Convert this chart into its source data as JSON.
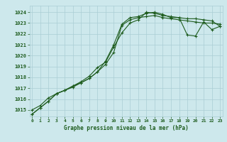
{
  "title": "Graphe pression niveau de la mer (hPa)",
  "xlabel_ticks": [
    0,
    1,
    2,
    3,
    4,
    5,
    6,
    7,
    8,
    9,
    10,
    11,
    12,
    13,
    14,
    15,
    16,
    17,
    18,
    19,
    20,
    21,
    22,
    23
  ],
  "ylim": [
    1014.4,
    1024.6
  ],
  "xlim": [
    -0.3,
    23.3
  ],
  "yticks": [
    1015,
    1016,
    1017,
    1018,
    1019,
    1020,
    1021,
    1022,
    1023,
    1024
  ],
  "bg_color": "#cde8ec",
  "grid_color": "#aacdd4",
  "line_color": "#1e5c1e",
  "line1_x": [
    0,
    1,
    2,
    3,
    4,
    5,
    6,
    7,
    8,
    9,
    10,
    11,
    12,
    13,
    14,
    15,
    16,
    17,
    18,
    19,
    20,
    21,
    22,
    23
  ],
  "line1_y": [
    1015.0,
    1015.4,
    1016.1,
    1016.5,
    1016.8,
    1017.2,
    1017.5,
    1017.9,
    1018.5,
    1019.2,
    1020.3,
    1022.8,
    1023.3,
    1023.5,
    1023.6,
    1023.7,
    1023.5,
    1023.4,
    1023.3,
    1023.2,
    1023.1,
    1023.0,
    1023.0,
    1022.9
  ],
  "line2_x": [
    0,
    1,
    2,
    3,
    4,
    5,
    6,
    7,
    8,
    9,
    10,
    11,
    12,
    13,
    14,
    15,
    16,
    17,
    18,
    19,
    20,
    21,
    22,
    23
  ],
  "line2_y": [
    1014.6,
    1015.2,
    1015.8,
    1016.5,
    1016.8,
    1017.1,
    1017.5,
    1017.9,
    1018.5,
    1019.5,
    1021.0,
    1022.9,
    1023.5,
    1023.6,
    1023.9,
    1024.0,
    1023.8,
    1023.5,
    1023.5,
    1023.4,
    1023.4,
    1023.3,
    1023.2,
    1022.7
  ],
  "line3_x": [
    0,
    1,
    2,
    3,
    4,
    5,
    6,
    7,
    8,
    9,
    10,
    11,
    12,
    13,
    14,
    15,
    16,
    17,
    18,
    19,
    20,
    21,
    22,
    23
  ],
  "line3_y": [
    1014.6,
    1015.2,
    1015.8,
    1016.5,
    1016.8,
    1017.2,
    1017.6,
    1018.1,
    1018.9,
    1019.4,
    1020.8,
    1022.1,
    1023.0,
    1023.3,
    1024.0,
    1023.9,
    1023.7,
    1023.6,
    1023.5,
    1021.9,
    1021.8,
    1023.1,
    1022.4,
    1022.7
  ]
}
